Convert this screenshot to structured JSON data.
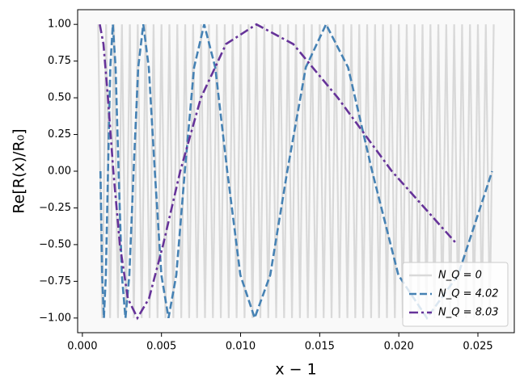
{
  "chart_data": {
    "type": "line",
    "xlabel": "x − 1",
    "ylabel": "Re[R(x)/R₀]",
    "xlim": [
      -0.0003,
      0.0273
    ],
    "ylim": [
      -1.1,
      1.1
    ],
    "xticks": [
      {
        "value": 0,
        "label": "0.000"
      },
      {
        "value": 0.005,
        "label": "0.005"
      },
      {
        "value": 0.01,
        "label": "0.010"
      },
      {
        "value": 0.015,
        "label": "0.015"
      },
      {
        "value": 0.02,
        "label": "0.020"
      },
      {
        "value": 0.025,
        "label": "0.025"
      }
    ],
    "yticks": [
      {
        "value": -1,
        "label": "−1.00"
      },
      {
        "value": -0.75,
        "label": "−0.75"
      },
      {
        "value": -0.5,
        "label": "−0.50"
      },
      {
        "value": -0.25,
        "label": "−0.25"
      },
      {
        "value": 0,
        "label": "0.00"
      },
      {
        "value": 0.25,
        "label": "0.25"
      },
      {
        "value": 0.5,
        "label": "0.50"
      },
      {
        "value": 0.75,
        "label": "0.75"
      },
      {
        "value": 1,
        "label": "1.00"
      }
    ],
    "legend": "lower right",
    "series": [
      {
        "name": "N_Q = 0",
        "color": "#d9d9d9",
        "dash": "solid",
        "x": [
          0.001,
          0.00125,
          0.0015,
          0.00175,
          0.002,
          0.00225,
          0.0025,
          0.00275,
          0.003,
          0.00325,
          0.0035,
          0.00375,
          0.004,
          0.00425,
          0.0045,
          0.00475,
          0.005,
          0.00525,
          0.0055,
          0.00575,
          0.006,
          0.00625,
          0.0065,
          0.00675,
          0.007,
          0.00725,
          0.0075,
          0.00775,
          0.008,
          0.00825,
          0.0085,
          0.00875,
          0.009,
          0.00925,
          0.0095,
          0.00975,
          0.01,
          0.01025,
          0.0105,
          0.01075,
          0.011,
          0.01125,
          0.0115,
          0.01175,
          0.012,
          0.01225,
          0.0125,
          0.01275,
          0.013,
          0.01325,
          0.0135,
          0.01375,
          0.014,
          0.01425,
          0.0145,
          0.01475,
          0.015,
          0.01525,
          0.0155,
          0.01575,
          0.016,
          0.01625,
          0.0165,
          0.01675,
          0.017,
          0.01725,
          0.0175,
          0.01775,
          0.018,
          0.01825,
          0.0185,
          0.01875,
          0.019,
          0.01925,
          0.0195,
          0.01975,
          0.02,
          0.02025,
          0.0205,
          0.02075,
          0.021,
          0.02125,
          0.0215,
          0.02175,
          0.022,
          0.02225,
          0.0225,
          0.02275,
          0.023,
          0.02325,
          0.0235,
          0.02375,
          0.024,
          0.02425,
          0.0245,
          0.02475,
          0.025,
          0.02525,
          0.0255,
          0.02575,
          0.026
        ],
        "values": [
          1,
          -1,
          1,
          -1,
          1,
          -1,
          1,
          -1,
          1,
          -1,
          1,
          -1,
          1,
          -1,
          1,
          -1,
          1,
          -1,
          1,
          -1,
          1,
          -1,
          1,
          -1,
          1,
          -1,
          1,
          -1,
          1,
          -1,
          1,
          -1,
          1,
          -1,
          1,
          -1,
          1,
          -1,
          1,
          -1,
          1,
          -1,
          1,
          -1,
          1,
          -1,
          1,
          -1,
          1,
          -1,
          1,
          -1,
          1,
          -1,
          1,
          -1,
          1,
          -1,
          1,
          -1,
          1,
          -1,
          1,
          -1,
          1,
          -1,
          1,
          -1,
          1,
          -1,
          1,
          -1,
          1,
          -1,
          1,
          -1,
          1,
          -1,
          1,
          -1,
          1,
          -1,
          1,
          -1,
          1,
          -1,
          1,
          -1,
          1,
          -1,
          1,
          -1,
          1,
          -1,
          1,
          -1,
          1,
          -1,
          1,
          -1,
          1
        ]
      },
      {
        "name": "N_Q = 4.02",
        "color": "#4682b4",
        "dash": "dashed",
        "x": [
          0.001144,
          0.001248,
          0.001361,
          0.001484,
          0.001619,
          0.001765,
          0.001925,
          0.002099,
          0.002289,
          0.002496,
          0.002722,
          0.002969,
          0.003237,
          0.00353,
          0.00385,
          0.004198,
          0.004578,
          0.004993,
          0.005445,
          0.005937,
          0.006475,
          0.007061,
          0.0077,
          0.008397,
          0.009157,
          0.009985,
          0.010889,
          0.011875,
          0.01295,
          0.014122,
          0.0154,
          0.016794,
          0.018314,
          0.019971,
          0.021779,
          0.02375,
          0.0259
        ],
        "values": [
          0,
          -0.707,
          -1,
          -0.707,
          0,
          0.707,
          1,
          0.707,
          0,
          -0.707,
          -1,
          -0.707,
          0,
          0.707,
          1,
          0.707,
          0,
          -0.707,
          -1,
          -0.707,
          0,
          0.707,
          1,
          0.707,
          0,
          -0.707,
          -1,
          -0.707,
          0,
          0.707,
          1,
          0.707,
          0,
          -0.707,
          -1,
          -0.707,
          0
        ]
      },
      {
        "name": "N_Q = 8.03",
        "color": "#663399",
        "dash": "dashdot",
        "x": [
          0.0011,
          0.001333,
          0.001615,
          0.001956,
          0.00237,
          0.002871,
          0.003479,
          0.004214,
          0.005106,
          0.006186,
          0.007494,
          0.009079,
          0.011,
          0.013327,
          0.016146,
          0.019561,
          0.023698
        ],
        "values": [
          1,
          0.866,
          0.5,
          0,
          -0.5,
          -0.866,
          -1,
          -0.866,
          -0.5,
          0,
          0.5,
          0.866,
          1,
          0.866,
          0.5,
          0,
          -0.5
        ]
      }
    ]
  }
}
